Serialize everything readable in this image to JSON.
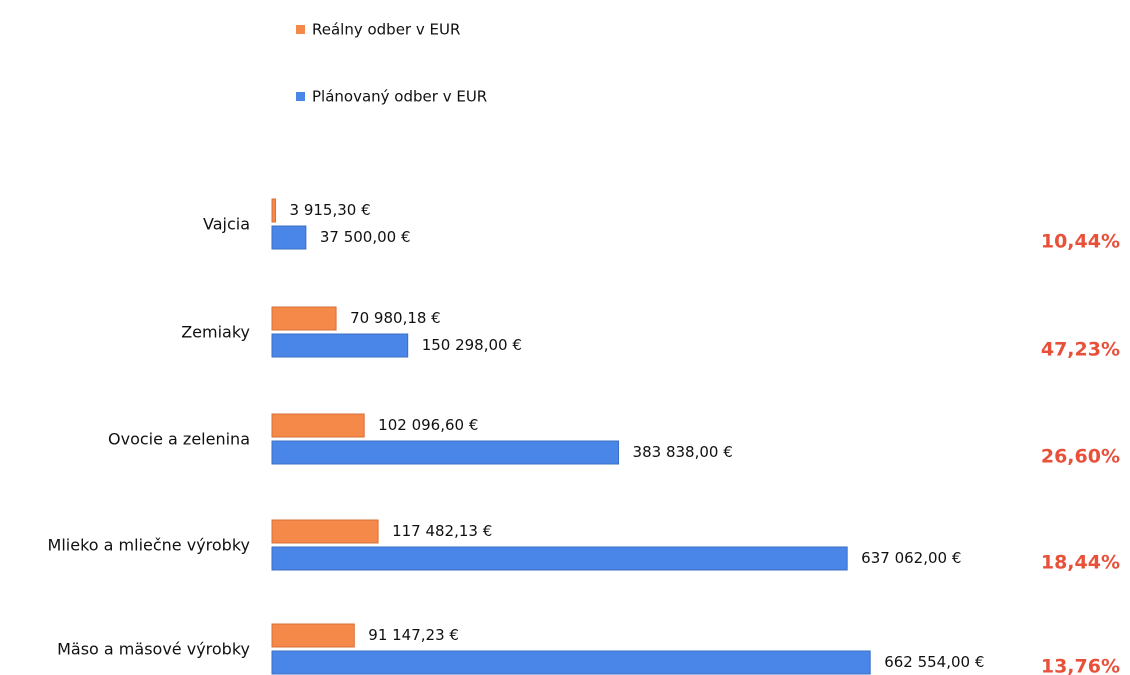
{
  "chart_data": {
    "type": "hbar",
    "categories": [
      "Vajcia",
      "Zemiaky",
      "Ovocie a zelenina",
      "Mlieko a mliečne výrobky",
      "Mäso a mäsové výrobky"
    ],
    "series": [
      {
        "name": "Reálny odber v EUR",
        "color": "#f4894a",
        "values": [
          3915.3,
          70980.18,
          102096.6,
          117482.13,
          91147.23
        ],
        "value_labels": [
          "3 915,30 €",
          "70 980,18 €",
          "102 096,60 €",
          "117 482,13 €",
          "91 147,23 €"
        ]
      },
      {
        "name": "Plánovaný odber v EUR",
        "color": "#4a86e8",
        "values": [
          37500,
          150298,
          383838,
          637062,
          662554
        ],
        "value_labels": [
          "37 500,00 €",
          "150 298,00 €",
          "383 838,00 €",
          "637 062,00 €",
          "662 554,00 €"
        ]
      }
    ],
    "ratio_labels": [
      "10,44%",
      "47,23%",
      "26,60%",
      "18,44%",
      "13,76%"
    ],
    "xlim": [
      0,
      700000
    ]
  }
}
